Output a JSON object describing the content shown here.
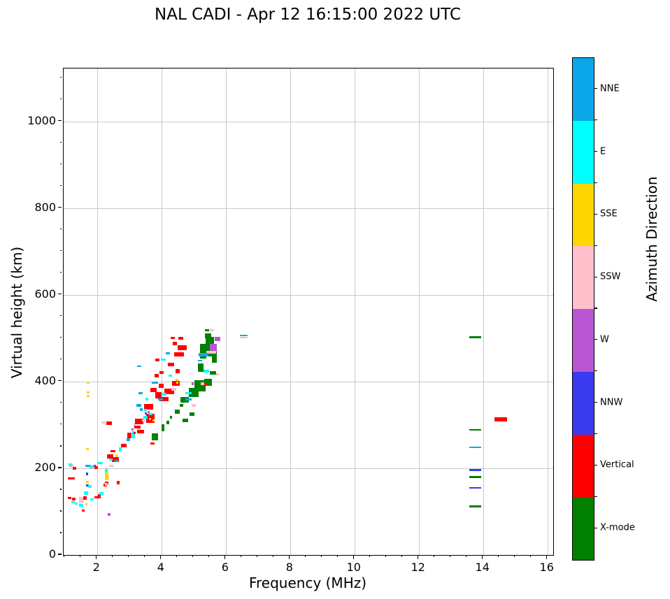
{
  "title": "NAL CADI - Apr 12 16:15:00 2022 UTC",
  "chart_data": {
    "type": "scatter",
    "title": "NAL CADI - Apr 12 16:15:00 2022 UTC",
    "xlabel": "Frequency (MHz)",
    "ylabel": "Virtual height (km)",
    "xlim": [
      0.96,
      16.18
    ],
    "ylim": [
      0,
      1122
    ],
    "x_major_ticks": [
      2,
      4,
      6,
      8,
      10,
      12,
      14,
      16
    ],
    "x_minor_step": 0.5,
    "y_major_ticks": [
      0,
      200,
      400,
      600,
      800,
      1000
    ],
    "y_minor_step": 50,
    "grid": true,
    "colorbar": {
      "label": "Azimuth Direction",
      "order_top_to_bottom": [
        "NNE",
        "E",
        "SSE",
        "SSW",
        "W",
        "NNW",
        "Vertical",
        "X-mode"
      ],
      "keys_top_to_bottom": [
        "nne",
        "e",
        "sse",
        "ssw",
        "w",
        "nnw",
        "vert",
        "x"
      ],
      "colors": {
        "nne": "#0AA8E8",
        "e": "#00FFFF",
        "sse": "#FFD700",
        "ssw": "#FFC0CB",
        "w": "#BA55D3",
        "nnw": "#3B3BF0",
        "vert": "#FF0000",
        "x": "#008000"
      }
    },
    "point_format": "[freq_MHz, virtual_height_km, direction_key, extent_MHz, extent_km]",
    "points": [
      [
        1.2,
        205,
        "ssw",
        0.15,
        8
      ],
      [
        1.17,
        208,
        "e",
        0.1,
        5
      ],
      [
        1.3,
        200,
        "vert",
        0.1,
        6
      ],
      [
        1.2,
        177,
        "vert",
        0.2,
        5
      ],
      [
        1.28,
        129,
        "vert",
        0.12,
        6
      ],
      [
        1.26,
        121,
        "e",
        0.1,
        5
      ],
      [
        1.15,
        131,
        "vert",
        0.1,
        5
      ],
      [
        1.35,
        118,
        "e",
        0.1,
        5
      ],
      [
        1.5,
        127,
        "ssw",
        0.14,
        14
      ],
      [
        1.62,
        132,
        "vert",
        0.12,
        8
      ],
      [
        1.66,
        142,
        "e",
        0.12,
        8
      ],
      [
        1.7,
        160,
        "nnw",
        0.08,
        5
      ],
      [
        1.7,
        169,
        "sse",
        0.08,
        5
      ],
      [
        1.5,
        114,
        "e",
        0.12,
        6
      ],
      [
        1.67,
        117,
        "sse",
        0.08,
        5
      ],
      [
        1.57,
        102,
        "vert",
        0.08,
        5
      ],
      [
        1.84,
        128,
        "e",
        0.12,
        6
      ],
      [
        2.02,
        133,
        "vert",
        0.2,
        6
      ],
      [
        2.07,
        137,
        "vert",
        0.1,
        6
      ],
      [
        2.13,
        142,
        "e",
        0.12,
        6
      ],
      [
        2.26,
        161,
        "vert",
        0.1,
        6
      ],
      [
        2.3,
        166,
        "vert",
        0.12,
        6
      ],
      [
        2.33,
        177,
        "ssw",
        0.08,
        5
      ],
      [
        2.37,
        93,
        "w",
        0.1,
        7
      ],
      [
        2.66,
        167,
        "vert",
        0.1,
        7
      ],
      [
        1.77,
        158,
        "e",
        0.1,
        5
      ],
      [
        2.28,
        163,
        "ssw",
        0.08,
        6
      ],
      [
        1.72,
        206,
        "nne",
        0.16,
        5
      ],
      [
        1.83,
        203,
        "e",
        0.12,
        6
      ],
      [
        1.93,
        205,
        "nnw",
        0.07,
        5
      ],
      [
        1.97,
        201,
        "vert",
        0.1,
        7
      ],
      [
        2.1,
        212,
        "e",
        0.14,
        5
      ],
      [
        2.45,
        206,
        "ssw",
        0.16,
        5
      ],
      [
        2.28,
        193,
        "e",
        0.08,
        9
      ],
      [
        2.3,
        181,
        "sse",
        0.1,
        17
      ],
      [
        1.68,
        187,
        "nnw",
        0.07,
        5
      ],
      [
        1.7,
        244,
        "sse",
        0.07,
        5
      ],
      [
        2.4,
        227,
        "vert",
        0.2,
        10
      ],
      [
        2.57,
        220,
        "vert",
        0.22,
        10
      ],
      [
        2.43,
        220,
        "e",
        0.12,
        5
      ],
      [
        2.6,
        217,
        "nne",
        0.1,
        5
      ],
      [
        2.6,
        229,
        "sse",
        0.08,
        6
      ],
      [
        2.5,
        240,
        "vert",
        0.16,
        5
      ],
      [
        2.72,
        243,
        "e",
        0.1,
        10
      ],
      [
        2.83,
        253,
        "vert",
        0.17,
        8
      ],
      [
        2.97,
        266,
        "nne",
        0.12,
        6
      ],
      [
        3.13,
        278,
        "e",
        0.1,
        16
      ],
      [
        3.0,
        276,
        "vert",
        0.13,
        12
      ],
      [
        3.1,
        290,
        "w",
        0.07,
        5
      ],
      [
        3.17,
        300,
        "ssw",
        0.07,
        8
      ],
      [
        3.3,
        308,
        "vert",
        0.26,
        12
      ],
      [
        3.65,
        315,
        "vert",
        0.26,
        20
      ],
      [
        3.76,
        310,
        "sse",
        0.07,
        5
      ],
      [
        3.67,
        325,
        "e",
        0.12,
        5
      ],
      [
        2.2,
        305,
        "ssw",
        0.14,
        5
      ],
      [
        2.37,
        304,
        "vert",
        0.18,
        7
      ],
      [
        3.37,
        335,
        "nne",
        0.1,
        6
      ],
      [
        3.5,
        318,
        "e",
        0.12,
        6
      ],
      [
        3.3,
        290,
        "ssw",
        0.1,
        6
      ],
      [
        3.17,
        282,
        "vert",
        0.08,
        5
      ],
      [
        3.3,
        435,
        "nne",
        0.13,
        4
      ],
      [
        3.35,
        373,
        "nne",
        0.13,
        4
      ],
      [
        3.6,
        342,
        "vert",
        0.3,
        14
      ],
      [
        3.5,
        335,
        "e",
        0.1,
        5
      ],
      [
        3.3,
        345,
        "nne",
        0.16,
        5
      ],
      [
        3.52,
        326,
        "nnw",
        0.07,
        5
      ],
      [
        3.6,
        330,
        "w",
        0.07,
        5
      ],
      [
        3.65,
        314,
        "sse",
        0.07,
        5
      ],
      [
        3.45,
        310,
        "ssw",
        0.1,
        5
      ],
      [
        3.25,
        295,
        "vert",
        0.2,
        6
      ],
      [
        3.35,
        285,
        "vert",
        0.2,
        8
      ],
      [
        3.75,
        380,
        "vert",
        0.2,
        10
      ],
      [
        3.9,
        368,
        "vert",
        0.2,
        14
      ],
      [
        4.0,
        390,
        "vert",
        0.15,
        10
      ],
      [
        3.55,
        360,
        "e",
        0.1,
        6
      ],
      [
        4.08,
        360,
        "vert",
        0.3,
        10
      ],
      [
        4.25,
        377,
        "vert",
        0.3,
        14
      ],
      [
        4.45,
        396,
        "vert",
        0.25,
        12
      ],
      [
        4.1,
        371,
        "e",
        0.13,
        7
      ],
      [
        3.97,
        358,
        "nne",
        0.15,
        5
      ],
      [
        4.5,
        398,
        "sse",
        0.07,
        5
      ],
      [
        4.38,
        382,
        "ssw",
        0.15,
        5
      ],
      [
        3.85,
        413,
        "vert",
        0.12,
        8
      ],
      [
        4.0,
        421,
        "vert",
        0.13,
        7
      ],
      [
        4.35,
        500,
        "vert",
        0.13,
        5
      ],
      [
        4.6,
        500,
        "vert",
        0.15,
        7
      ],
      [
        4.65,
        478,
        "vert",
        0.28,
        10
      ],
      [
        4.55,
        463,
        "vert",
        0.3,
        10
      ],
      [
        4.3,
        440,
        "vert",
        0.18,
        8
      ],
      [
        4.5,
        424,
        "vert",
        0.14,
        10
      ],
      [
        4.2,
        465,
        "nne",
        0.12,
        6
      ],
      [
        4.28,
        413,
        "e",
        0.12,
        5
      ],
      [
        4.48,
        404,
        "sse",
        0.07,
        5
      ],
      [
        4.05,
        450,
        "e",
        0.15,
        5
      ],
      [
        3.88,
        450,
        "vert",
        0.13,
        6
      ],
      [
        3.8,
        398,
        "nne",
        0.19,
        5
      ],
      [
        4.42,
        488,
        "vert",
        0.14,
        8
      ],
      [
        3.8,
        273,
        "x",
        0.2,
        16
      ],
      [
        4.05,
        293,
        "x",
        0.08,
        16
      ],
      [
        4.2,
        305,
        "x",
        0.1,
        8
      ],
      [
        4.3,
        318,
        "x",
        0.08,
        6
      ],
      [
        4.5,
        330,
        "x",
        0.15,
        10
      ],
      [
        4.62,
        345,
        "x",
        0.12,
        8
      ],
      [
        4.72,
        358,
        "x",
        0.25,
        12
      ],
      [
        5.0,
        375,
        "x",
        0.3,
        20
      ],
      [
        5.2,
        390,
        "x",
        0.35,
        25
      ],
      [
        5.45,
        398,
        "x",
        0.25,
        15
      ],
      [
        4.75,
        310,
        "x",
        0.17,
        8
      ],
      [
        4.95,
        325,
        "x",
        0.17,
        8
      ],
      [
        3.72,
        257,
        "vert",
        0.13,
        5
      ],
      [
        4.85,
        373,
        "e",
        0.2,
        5
      ],
      [
        4.85,
        358,
        "nne",
        0.2,
        5
      ],
      [
        5.0,
        345,
        "ssw",
        0.12,
        8
      ],
      [
        5.35,
        394,
        "vert",
        0.16,
        5
      ],
      [
        4.98,
        395,
        "w",
        0.07,
        5
      ],
      [
        5.28,
        395,
        "ssw",
        0.1,
        5
      ],
      [
        5.6,
        420,
        "x",
        0.2,
        8
      ],
      [
        5.74,
        417,
        "ssw",
        0.1,
        5
      ],
      [
        5.3,
        470,
        "x",
        0.2,
        35
      ],
      [
        5.5,
        480,
        "x",
        0.25,
        45
      ],
      [
        5.65,
        458,
        "x",
        0.15,
        30
      ],
      [
        5.45,
        505,
        "x",
        0.2,
        12
      ],
      [
        5.5,
        498,
        "x",
        0.22,
        10
      ],
      [
        5.75,
        498,
        "w",
        0.18,
        10
      ],
      [
        5.62,
        478,
        "w",
        0.22,
        18
      ],
      [
        5.55,
        468,
        "ssw",
        0.3,
        7
      ],
      [
        5.3,
        462,
        "nne",
        0.3,
        8
      ],
      [
        5.2,
        448,
        "nne",
        0.14,
        4
      ],
      [
        5.4,
        424,
        "e",
        0.18,
        5
      ],
      [
        5.22,
        432,
        "x",
        0.16,
        18
      ],
      [
        5.42,
        518,
        "x",
        0.13,
        5
      ],
      [
        5.57,
        518,
        "ssw",
        0.12,
        5
      ],
      [
        6.55,
        506,
        "nne",
        0.24,
        4
      ],
      [
        6.55,
        501,
        "ssw",
        0.24,
        4
      ],
      [
        13.75,
        502,
        "x",
        0.36,
        5
      ],
      [
        14.55,
        313,
        "vert",
        0.4,
        10
      ],
      [
        13.75,
        288,
        "x",
        0.36,
        3
      ],
      [
        13.75,
        248,
        "nne",
        0.36,
        4
      ],
      [
        13.75,
        196,
        "nnw",
        0.36,
        4
      ],
      [
        13.75,
        180,
        "x",
        0.36,
        4
      ],
      [
        13.75,
        155,
        "nnw",
        0.36,
        4
      ],
      [
        13.75,
        112,
        "x",
        0.36,
        4
      ],
      [
        1.72,
        397,
        "sse",
        0.07,
        5
      ],
      [
        1.72,
        375,
        "sse",
        0.07,
        5
      ],
      [
        1.72,
        367,
        "sse",
        0.07,
        5
      ]
    ]
  }
}
